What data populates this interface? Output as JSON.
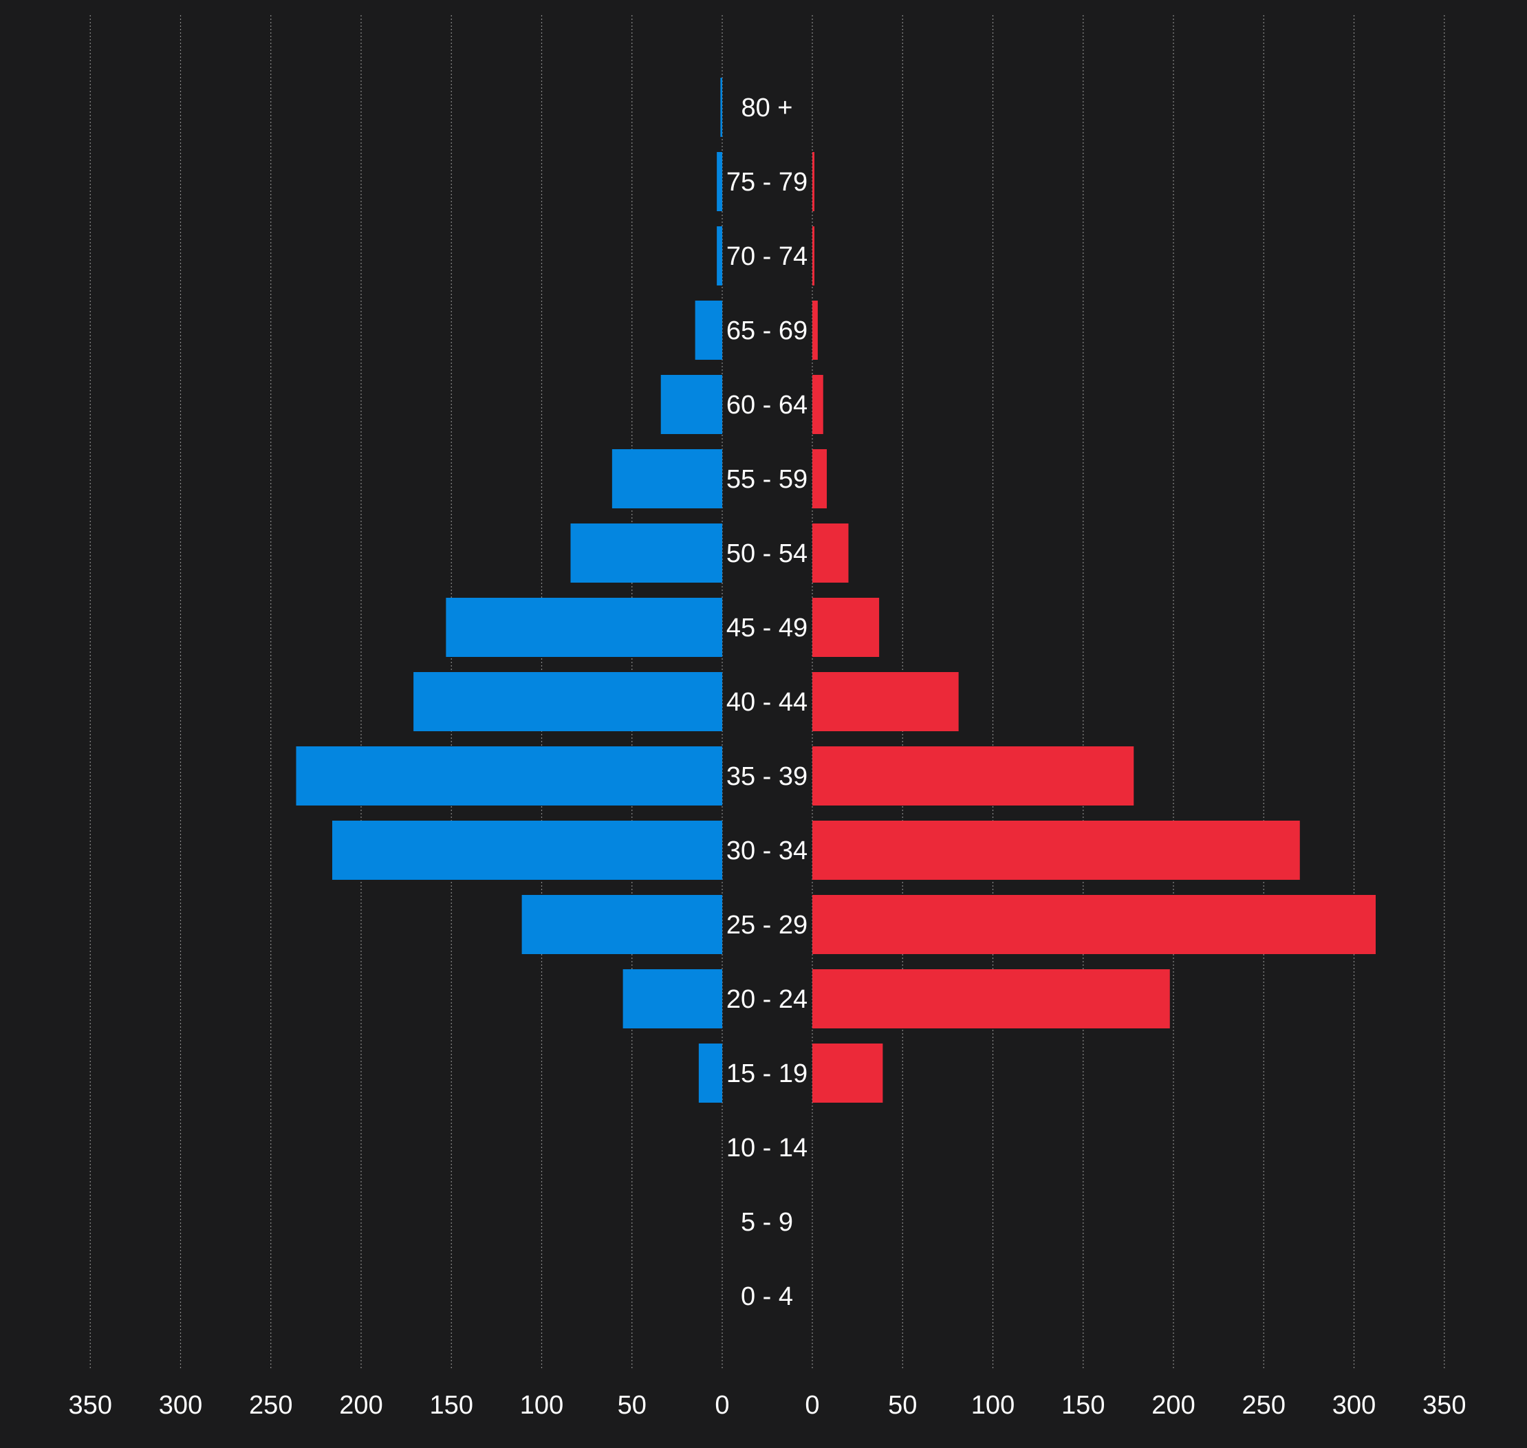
{
  "chart_data": {
    "type": "bar",
    "orientation": "horizontal",
    "layout": "population-pyramid",
    "categories": [
      "80 +",
      "75 - 79",
      "70 - 74",
      "65 - 69",
      "60 - 64",
      "55 - 59",
      "50 - 54",
      "45 - 49",
      "40 - 44",
      "35 - 39",
      "30 - 34",
      "25 - 29",
      "20 - 24",
      "15 - 19",
      "10 - 14",
      "5 - 9",
      "0 - 4"
    ],
    "series": [
      {
        "side": "left",
        "color": "#0486e0",
        "values": [
          1,
          3,
          3,
          15,
          34,
          61,
          84,
          153,
          171,
          236,
          216,
          111,
          55,
          13,
          0,
          0,
          0
        ]
      },
      {
        "side": "right",
        "color": "#ec2939",
        "values": [
          0,
          1,
          1,
          3,
          6,
          8,
          20,
          37,
          81,
          178,
          270,
          312,
          198,
          39,
          0,
          0,
          0
        ]
      }
    ],
    "xlim": [
      0,
      350
    ],
    "ticks": [
      350,
      300,
      250,
      200,
      150,
      100,
      50,
      0
    ],
    "grid": true,
    "title": "",
    "xlabel": "",
    "ylabel": ""
  },
  "colors": {
    "background": "#1b1b1c",
    "text": "#ffffff",
    "grid": "#8a8a8a"
  }
}
